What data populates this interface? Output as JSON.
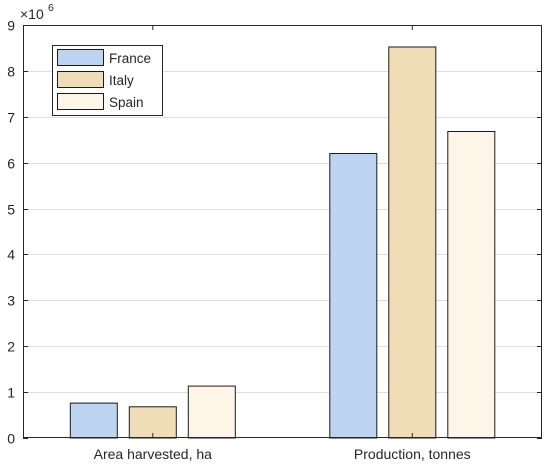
{
  "chart_data": {
    "type": "bar",
    "categories": [
      "Area harvested, ha",
      "Production, tonnes"
    ],
    "series": [
      {
        "name": "France",
        "values": [
          760000,
          6200000
        ],
        "color": "#bcd4f1"
      },
      {
        "name": "Italy",
        "values": [
          680000,
          8520000
        ],
        "color": "#f0dcb6"
      },
      {
        "name": "Spain",
        "values": [
          1130000,
          6680000
        ],
        "color": "#fdf6e8"
      }
    ],
    "ylim": [
      0,
      9000000
    ],
    "yticks": [
      0,
      1000000,
      2000000,
      3000000,
      4000000,
      5000000,
      6000000,
      7000000,
      8000000,
      9000000
    ],
    "ytick_labels": [
      "0",
      "1",
      "2",
      "3",
      "4",
      "5",
      "6",
      "7",
      "8",
      "9"
    ],
    "y_multiplier": {
      "base": "×10",
      "exponent": "6"
    },
    "grid": "horizontal",
    "legend": "top-left",
    "title": "",
    "xlabel": "",
    "ylabel": "",
    "colors": {
      "axis": "#262626",
      "grid": "#dfdfdf",
      "bar_edge": "#1a1a1a"
    }
  }
}
